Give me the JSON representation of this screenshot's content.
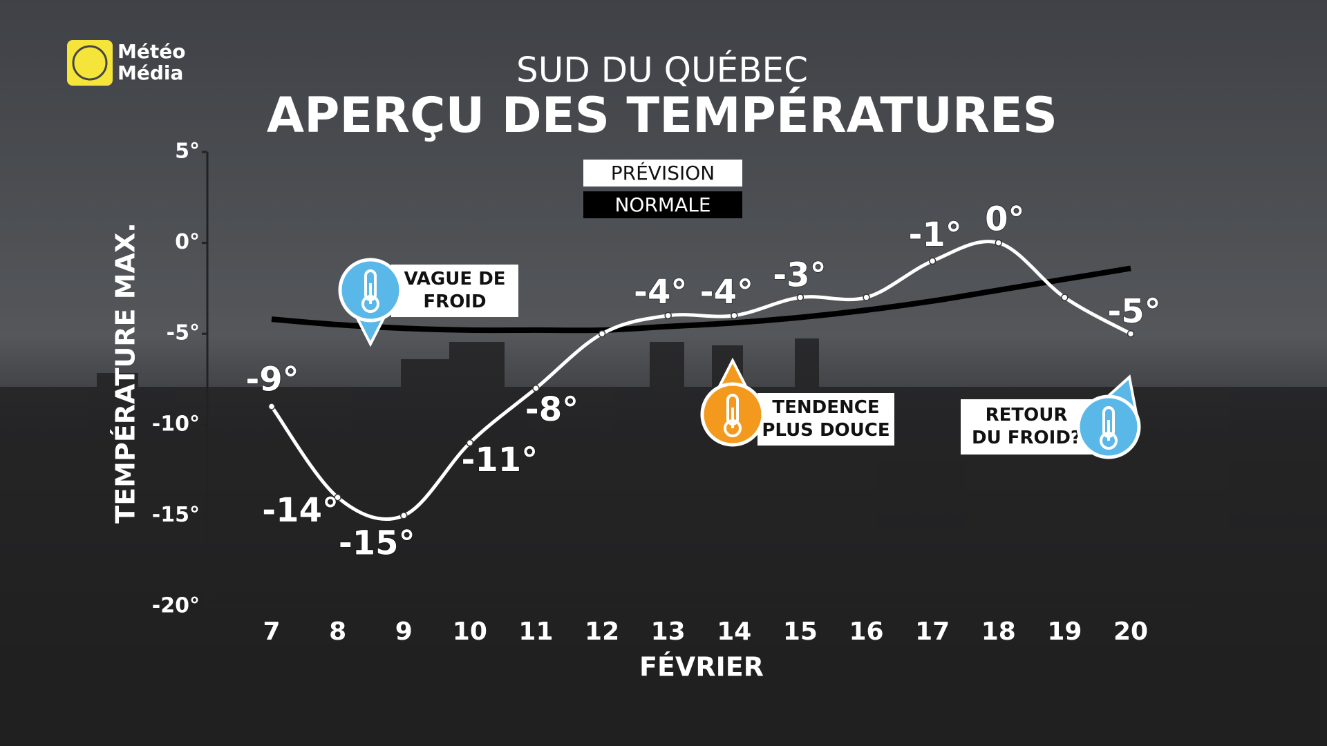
{
  "logo": [
    "Météo",
    "Média"
  ],
  "chart_data": {
    "type": "line",
    "subtitle": "SUD DU QUÉBEC",
    "title": "APERÇU DES TEMPÉRATURES",
    "y_label": "TEMPÉRATURE MAX.",
    "x_label": "FÉVRIER",
    "categories": [
      "7",
      "8",
      "9",
      "10",
      "11",
      "12",
      "13",
      "14",
      "15",
      "16",
      "17",
      "18",
      "19",
      "20"
    ],
    "series": [
      {
        "name": "PRÉVISION",
        "color": "#ffffff",
        "values": [
          -9,
          -14,
          -15,
          -11,
          -8,
          -5,
          -4,
          -4,
          -3,
          -3,
          -1,
          0,
          -3,
          -5
        ],
        "value_labels": [
          "-9°",
          "-14°",
          "-15°",
          "-11°",
          "-8°",
          null,
          "-4°",
          "-4°",
          "-3°",
          null,
          "-1°",
          "0°",
          null,
          "-5°"
        ]
      },
      {
        "name": "NORMALE",
        "color": "#000000",
        "values": [
          -4.2,
          -4.5,
          -4.7,
          -4.8,
          -4.8,
          -4.8,
          -4.6,
          -4.4,
          -4.1,
          -3.7,
          -3.2,
          -2.6,
          -2.0,
          -1.4
        ]
      }
    ],
    "ylim": [
      -20,
      5
    ],
    "yticks": [
      {
        "value": -20,
        "label": "-20°"
      },
      {
        "value": -15,
        "label": "-15°"
      },
      {
        "value": -10,
        "label": "-10°"
      },
      {
        "value": -5,
        "label": "-5°"
      },
      {
        "value": 0,
        "label": "0°"
      },
      {
        "value": 5,
        "label": "5°"
      }
    ],
    "annotations": [
      [
        "VAGUE DE",
        "FROID"
      ],
      [
        "TENDENCE",
        "PLUS DOUCE"
      ],
      [
        "RETOUR",
        "DU FROID?"
      ]
    ]
  }
}
